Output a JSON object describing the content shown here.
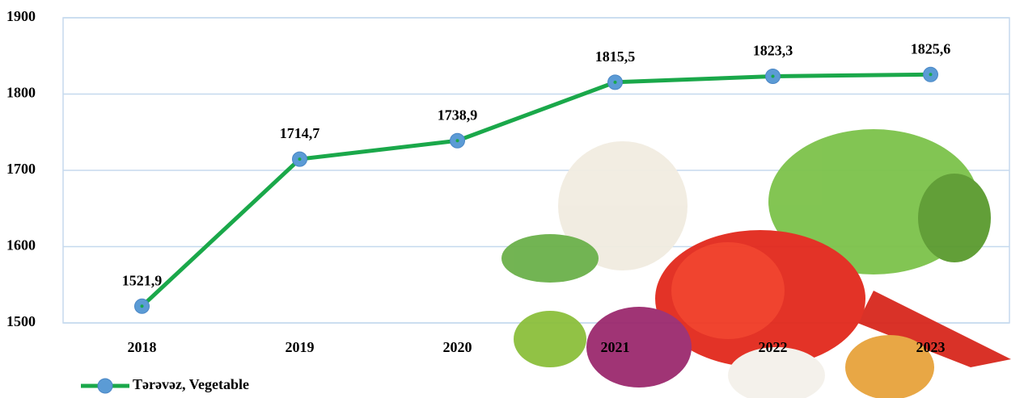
{
  "chart_data": {
    "type": "line",
    "categories": [
      "2018",
      "2019",
      "2020",
      "2021",
      "2022",
      "2023"
    ],
    "series": [
      {
        "name": "Tərəvəz, Vegetable",
        "color": "#1aa84a",
        "marker_color": "#5b9bd5",
        "values": [
          1521.9,
          1714.7,
          1738.9,
          1815.5,
          1823.3,
          1825.6
        ],
        "value_labels": [
          "1521,9",
          "1714,7",
          "1738,9",
          "1815,5",
          "1823,3",
          "1825,6"
        ]
      }
    ],
    "ylim": [
      1500,
      1900
    ],
    "yticks": [
      1500,
      1600,
      1700,
      1800,
      1900
    ],
    "grid": true,
    "legend": "bottom-left"
  }
}
